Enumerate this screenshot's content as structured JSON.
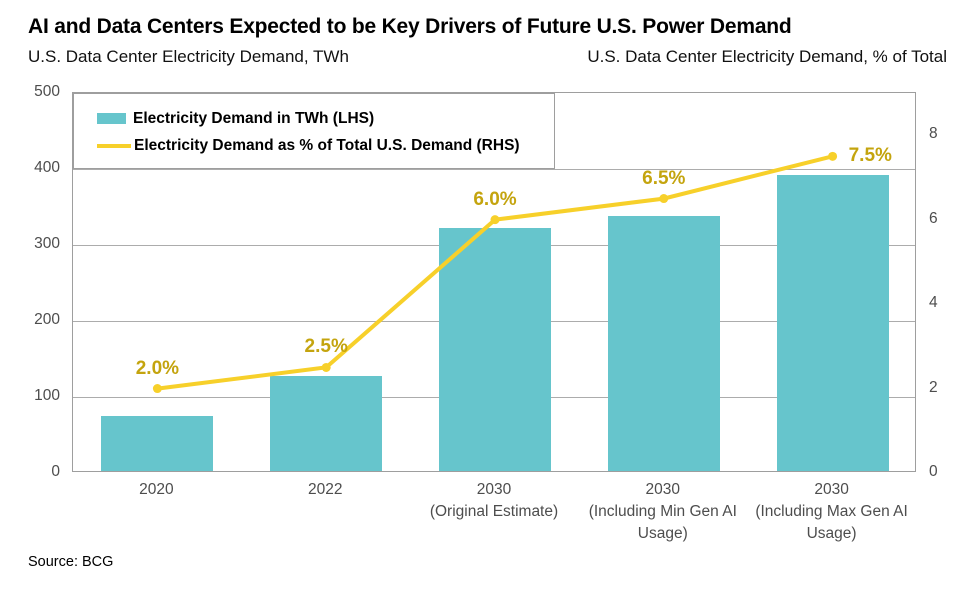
{
  "header": {
    "title": "AI and Data Centers Expected to be Key Drivers of Future U.S. Power Demand",
    "subtitle_left": "U.S. Data Center Electricity Demand, TWh",
    "subtitle_right": "U.S. Data Center Electricity Demand, % of Total"
  },
  "legend": {
    "bar_label": "Electricity Demand in TWh (LHS)",
    "line_label": "Electricity Demand as % of Total U.S. Demand (RHS)"
  },
  "source": "Source: BCG",
  "colors": {
    "bar": "#66C5CC",
    "line": "#F7D02A",
    "point_label": "#C4A40E",
    "gridline": "#ACACAC",
    "axis_border": "#9E9E9E",
    "tick_text": "#4D4D4D"
  },
  "chart_data": {
    "type": "bar+line combo (dual axis)",
    "title": "AI and Data Centers Expected to be Key Drivers of Future U.S. Power Demand",
    "categories": [
      [
        "2020"
      ],
      [
        "2022"
      ],
      [
        "2030",
        "(Original Estimate)"
      ],
      [
        "2030",
        "(Including Min Gen AI",
        "Usage)"
      ],
      [
        "2030",
        "(Including Max Gen AI",
        "Usage)"
      ]
    ],
    "series": [
      {
        "name": "Electricity Demand in TWh (LHS)",
        "type": "bar",
        "axis": "left",
        "values": [
          72,
          125,
          320,
          335,
          390
        ]
      },
      {
        "name": "Electricity Demand as % of Total U.S. Demand (RHS)",
        "type": "line",
        "axis": "right",
        "values": [
          2.0,
          2.5,
          6.0,
          6.5,
          7.5
        ],
        "point_labels": [
          "2.0%",
          "2.5%",
          "6.0%",
          "6.5%",
          "7.5%"
        ]
      }
    ],
    "left_axis": {
      "label": "U.S. Data Center Electricity Demand, TWh",
      "min": 0,
      "max": 500,
      "ticks": [
        0,
        100,
        200,
        300,
        400,
        500
      ]
    },
    "right_axis": {
      "label": "U.S. Data Center Electricity Demand, % of Total",
      "min": 0,
      "max": 9,
      "ticks": [
        0,
        2,
        4,
        6,
        8
      ]
    },
    "grid": "horizontal gridlines at left-axis ticks",
    "legend_position": "boxed, top-left inside plot area"
  }
}
